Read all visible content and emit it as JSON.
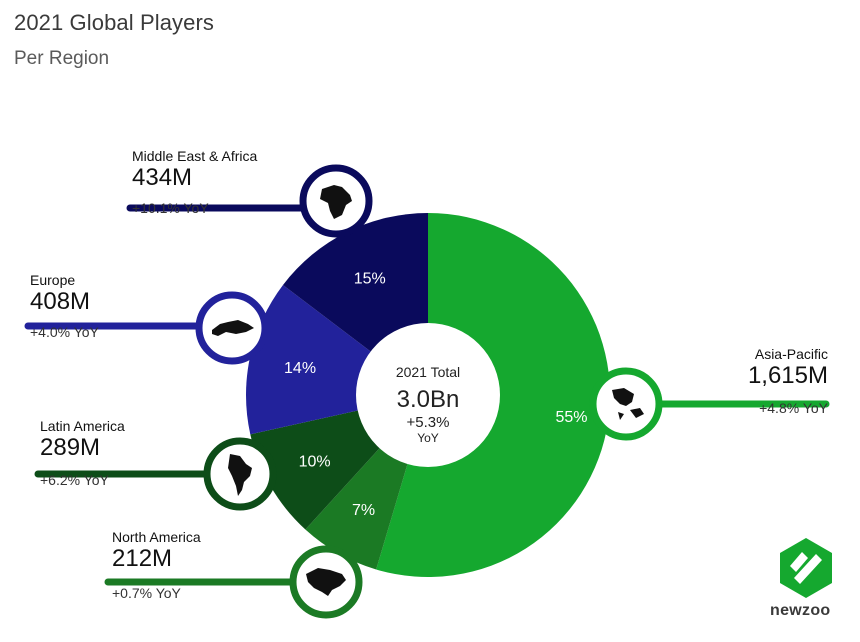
{
  "header": {
    "title": "2021 Global Players",
    "subtitle": "Per Region"
  },
  "center": {
    "label": "2021 Total",
    "value": "3.0Bn",
    "growth": "+5.3%",
    "growth_unit": "YoY"
  },
  "regions": [
    {
      "name": "Middle East & Africa",
      "players": "434M",
      "yoy": "+10.1% YoY",
      "share": "15%",
      "icon": "africa-map-icon"
    },
    {
      "name": "Europe",
      "players": "408M",
      "yoy": "+4.0% YoY",
      "share": "14%",
      "icon": "europe-map-icon"
    },
    {
      "name": "Latin America",
      "players": "289M",
      "yoy": "+6.2% YoY",
      "share": "10%",
      "icon": "south-america-map-icon"
    },
    {
      "name": "North America",
      "players": "212M",
      "yoy": "+0.7% YoY",
      "share": "7%",
      "icon": "north-america-map-icon"
    },
    {
      "name": "Asia-Pacific",
      "players": "1,615M",
      "yoy": "+4.8% YoY",
      "share": "55%",
      "icon": "asia-pacific-map-icon"
    }
  ],
  "chart_data": {
    "type": "pie",
    "variant": "donut",
    "title": "2021 Global Players",
    "subtitle": "Per Region",
    "unit": "M players",
    "slices": [
      {
        "label": "Asia-Pacific",
        "value": 1615,
        "percent": 55,
        "yoy_percent": 4.8,
        "color": "#15a82f"
      },
      {
        "label": "North America",
        "value": 212,
        "percent": 7,
        "yoy_percent": 0.7,
        "color": "#1b7a24"
      },
      {
        "label": "Latin America",
        "value": 289,
        "percent": 10,
        "yoy_percent": 6.2,
        "color": "#0d4d18"
      },
      {
        "label": "Europe",
        "value": 408,
        "percent": 14,
        "yoy_percent": 4.0,
        "color": "#22229b"
      },
      {
        "label": "Middle East & Africa",
        "value": 434,
        "percent": 15,
        "yoy_percent": 10.1,
        "color": "#0a0a5c"
      }
    ],
    "total": {
      "label": "2021 Total",
      "value": "3.0Bn",
      "yoy": "+5.3%"
    }
  },
  "logo": {
    "text": "newzoo",
    "color": "#15a82f"
  },
  "colors": {
    "asia_pacific": "#15a82f",
    "north_america": "#1b7a24",
    "latin_america": "#0d4d18",
    "europe": "#22229b",
    "middle_east_africa": "#0a0a5c"
  }
}
